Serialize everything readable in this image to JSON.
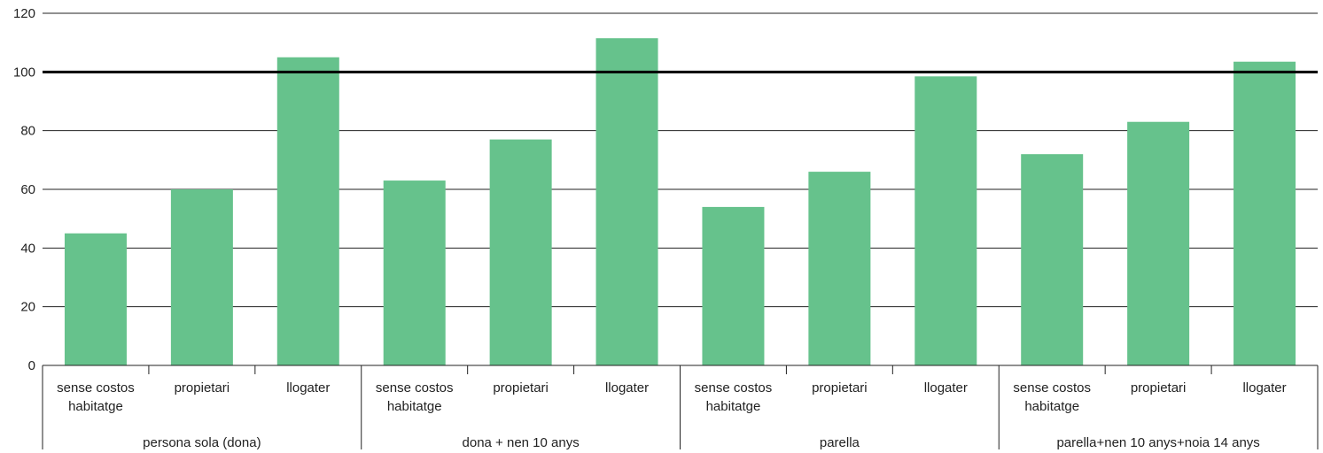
{
  "chart_data": {
    "type": "bar",
    "groups": [
      "persona sola (dona)",
      "dona + nen 10 anys",
      "parella",
      "parella+nen 10 anys+noia 14 anys"
    ],
    "categories": [
      "sense costos habitatge",
      "propietari",
      "llogater"
    ],
    "category_lines": [
      [
        "sense costos",
        "habitatge"
      ],
      [
        "propietari"
      ],
      [
        "llogater"
      ]
    ],
    "values": [
      [
        45,
        60,
        105
      ],
      [
        63,
        77,
        111.5
      ],
      [
        54,
        66,
        98.5
      ],
      [
        72,
        83,
        103.5
      ]
    ],
    "ylim": [
      0,
      120
    ],
    "yticks": [
      0,
      20,
      40,
      60,
      80,
      100,
      120
    ],
    "reference_line": 100,
    "grid": true,
    "colors": {
      "bar": "#66c28c",
      "grid": "#222222",
      "reference": "#000000",
      "text": "#222222"
    }
  }
}
